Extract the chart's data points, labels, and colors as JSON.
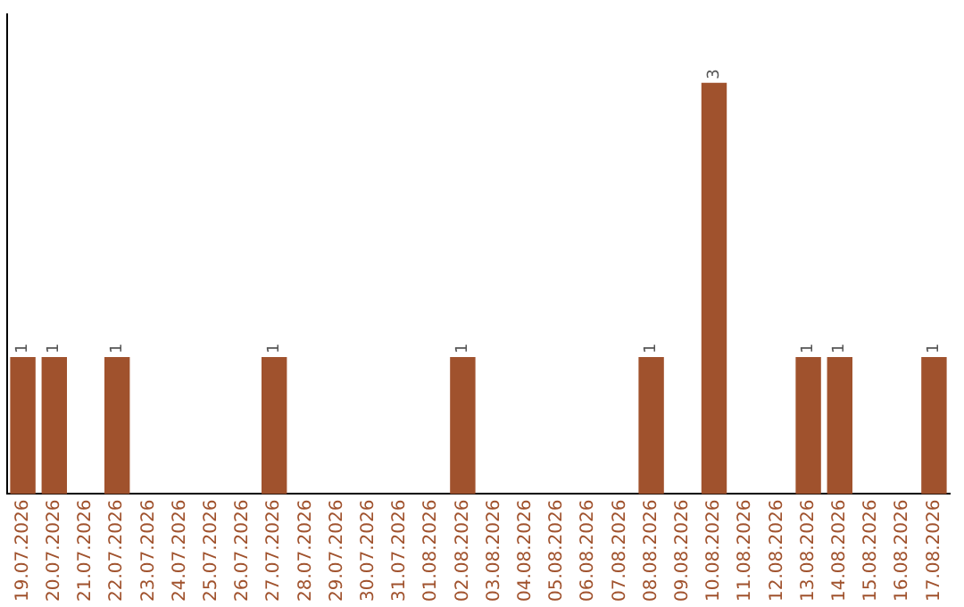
{
  "chart_data": {
    "type": "bar",
    "categories": [
      "19.07.2026",
      "20.07.2026",
      "21.07.2026",
      "22.07.2026",
      "23.07.2026",
      "24.07.2026",
      "25.07.2026",
      "26.07.2026",
      "27.07.2026",
      "28.07.2026",
      "29.07.2026",
      "30.07.2026",
      "31.07.2026",
      "01.08.2026",
      "02.08.2026",
      "03.08.2026",
      "04.08.2026",
      "05.08.2026",
      "06.08.2026",
      "07.08.2026",
      "08.08.2026",
      "09.08.2026",
      "10.08.2026",
      "11.08.2026",
      "12.08.2026",
      "13.08.2026",
      "14.08.2026",
      "15.08.2026",
      "16.08.2026",
      "17.08.2026"
    ],
    "values": [
      1,
      1,
      0,
      1,
      0,
      0,
      0,
      0,
      1,
      0,
      0,
      0,
      0,
      0,
      1,
      0,
      0,
      0,
      0,
      0,
      1,
      0,
      3,
      0,
      0,
      1,
      1,
      0,
      0,
      1
    ],
    "value_labels": [
      "1",
      "1",
      null,
      "1",
      null,
      null,
      null,
      null,
      "1",
      null,
      null,
      null,
      null,
      null,
      "1",
      null,
      null,
      null,
      null,
      null,
      "1",
      null,
      "3",
      null,
      null,
      "1",
      "1",
      null,
      null,
      "1"
    ],
    "color": "#a0522d",
    "grid": false,
    "legend": false
  }
}
